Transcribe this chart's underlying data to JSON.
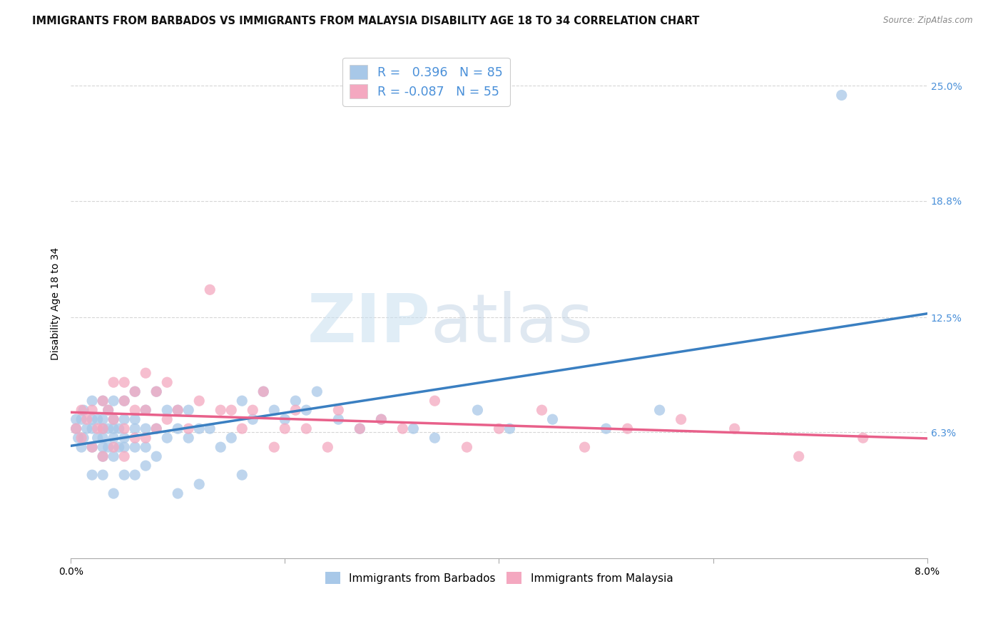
{
  "title": "IMMIGRANTS FROM BARBADOS VS IMMIGRANTS FROM MALAYSIA DISABILITY AGE 18 TO 34 CORRELATION CHART",
  "source": "Source: ZipAtlas.com",
  "ylabel": "Disability Age 18 to 34",
  "x_min": 0.0,
  "x_max": 0.08,
  "y_min": -0.005,
  "y_max": 0.27,
  "x_ticks": [
    0.0,
    0.02,
    0.04,
    0.06,
    0.08
  ],
  "x_tick_labels": [
    "0.0%",
    "",
    "",
    "",
    "8.0%"
  ],
  "y_ticks": [
    0.063,
    0.125,
    0.188,
    0.25
  ],
  "y_tick_labels": [
    "6.3%",
    "12.5%",
    "18.8%",
    "25.0%"
  ],
  "watermark_zip": "ZIP",
  "watermark_atlas": "atlas",
  "color_barbados": "#a8c8e8",
  "color_malaysia": "#f4a8c0",
  "line_color_barbados": "#3a7fc1",
  "line_color_malaysia": "#e8608a",
  "scatter_alpha": 0.75,
  "scatter_size": 120,
  "background_color": "#ffffff",
  "grid_color": "#cccccc",
  "title_fontsize": 10.5,
  "axis_label_fontsize": 10,
  "tick_label_fontsize": 10,
  "legend_label_color": "#4a90d9",
  "barbados_x": [
    0.0005,
    0.0005,
    0.0007,
    0.001,
    0.001,
    0.0012,
    0.0012,
    0.0015,
    0.002,
    0.002,
    0.002,
    0.002,
    0.002,
    0.0025,
    0.0025,
    0.003,
    0.003,
    0.003,
    0.003,
    0.003,
    0.003,
    0.003,
    0.0035,
    0.0035,
    0.0035,
    0.004,
    0.004,
    0.004,
    0.004,
    0.004,
    0.004,
    0.0045,
    0.0045,
    0.005,
    0.005,
    0.005,
    0.005,
    0.005,
    0.006,
    0.006,
    0.006,
    0.006,
    0.006,
    0.007,
    0.007,
    0.007,
    0.007,
    0.008,
    0.008,
    0.008,
    0.009,
    0.009,
    0.01,
    0.01,
    0.01,
    0.011,
    0.011,
    0.012,
    0.012,
    0.013,
    0.014,
    0.015,
    0.016,
    0.016,
    0.017,
    0.018,
    0.019,
    0.02,
    0.021,
    0.022,
    0.023,
    0.025,
    0.027,
    0.029,
    0.032,
    0.034,
    0.038,
    0.041,
    0.045,
    0.05,
    0.055,
    0.072
  ],
  "barbados_y": [
    0.065,
    0.07,
    0.06,
    0.055,
    0.07,
    0.06,
    0.075,
    0.065,
    0.04,
    0.055,
    0.065,
    0.07,
    0.08,
    0.06,
    0.07,
    0.04,
    0.05,
    0.055,
    0.06,
    0.065,
    0.07,
    0.08,
    0.055,
    0.065,
    0.075,
    0.03,
    0.05,
    0.06,
    0.065,
    0.07,
    0.08,
    0.055,
    0.065,
    0.04,
    0.055,
    0.06,
    0.07,
    0.08,
    0.04,
    0.055,
    0.065,
    0.07,
    0.085,
    0.045,
    0.055,
    0.065,
    0.075,
    0.05,
    0.065,
    0.085,
    0.06,
    0.075,
    0.03,
    0.065,
    0.075,
    0.06,
    0.075,
    0.035,
    0.065,
    0.065,
    0.055,
    0.06,
    0.04,
    0.08,
    0.07,
    0.085,
    0.075,
    0.07,
    0.08,
    0.075,
    0.085,
    0.07,
    0.065,
    0.07,
    0.065,
    0.06,
    0.075,
    0.065,
    0.07,
    0.065,
    0.075,
    0.245
  ],
  "malaysia_x": [
    0.0005,
    0.001,
    0.001,
    0.0015,
    0.002,
    0.002,
    0.0025,
    0.003,
    0.003,
    0.003,
    0.0035,
    0.004,
    0.004,
    0.004,
    0.005,
    0.005,
    0.005,
    0.005,
    0.006,
    0.006,
    0.006,
    0.007,
    0.007,
    0.007,
    0.008,
    0.008,
    0.009,
    0.009,
    0.01,
    0.011,
    0.012,
    0.013,
    0.014,
    0.015,
    0.016,
    0.017,
    0.018,
    0.019,
    0.02,
    0.021,
    0.022,
    0.024,
    0.025,
    0.027,
    0.029,
    0.031,
    0.034,
    0.037,
    0.04,
    0.044,
    0.048,
    0.052,
    0.057,
    0.062,
    0.068,
    0.074
  ],
  "malaysia_y": [
    0.065,
    0.06,
    0.075,
    0.07,
    0.055,
    0.075,
    0.065,
    0.05,
    0.065,
    0.08,
    0.075,
    0.055,
    0.07,
    0.09,
    0.05,
    0.065,
    0.08,
    0.09,
    0.06,
    0.075,
    0.085,
    0.06,
    0.075,
    0.095,
    0.065,
    0.085,
    0.07,
    0.09,
    0.075,
    0.065,
    0.08,
    0.14,
    0.075,
    0.075,
    0.065,
    0.075,
    0.085,
    0.055,
    0.065,
    0.075,
    0.065,
    0.055,
    0.075,
    0.065,
    0.07,
    0.065,
    0.08,
    0.055,
    0.065,
    0.075,
    0.055,
    0.065,
    0.07,
    0.065,
    0.05,
    0.06
  ]
}
